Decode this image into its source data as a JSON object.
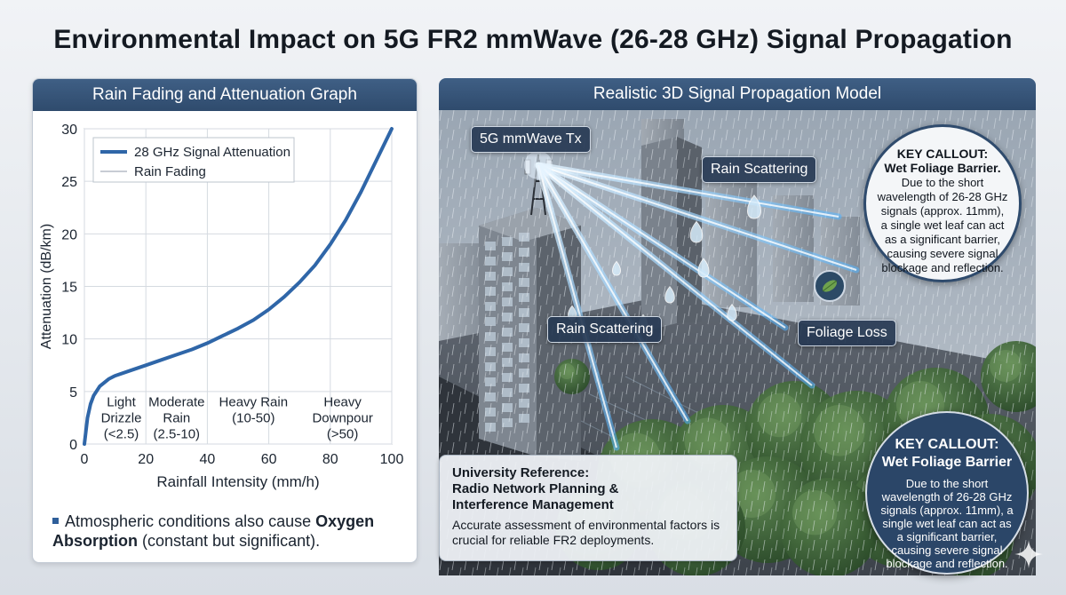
{
  "title": "Environmental Impact on 5G FR2 mmWave (26-28 GHz) Signal Propagation",
  "left_panel": {
    "header": "Rain Fading and Attenuation Graph",
    "footnote_prefix": "Atmospheric conditions also cause ",
    "footnote_bold": "Oxygen Absorption",
    "footnote_suffix": " (constant but significant)."
  },
  "chart_data": {
    "type": "line",
    "xlabel": "Rainfall Intensity (mm/h)",
    "ylabel": "Attenuation (dB/km)",
    "xlim": [
      0,
      100
    ],
    "ylim": [
      0,
      30
    ],
    "x_ticks": [
      0,
      20,
      40,
      60,
      80,
      100
    ],
    "y_ticks": [
      0,
      5,
      10,
      15,
      20,
      25,
      30
    ],
    "grid": true,
    "legend_position": "top-left",
    "series": [
      {
        "name": "28 GHz Signal Attenuation",
        "color": "#2f66a8",
        "x": [
          0,
          1,
          2,
          3,
          5,
          8,
          10,
          15,
          20,
          25,
          30,
          35,
          40,
          45,
          50,
          55,
          60,
          65,
          70,
          75,
          80,
          85,
          90,
          95,
          100
        ],
        "y": [
          0,
          2.5,
          3.8,
          4.6,
          5.5,
          6.2,
          6.5,
          7.0,
          7.5,
          8.0,
          8.5,
          9.0,
          9.6,
          10.3,
          11.0,
          11.8,
          12.8,
          14.0,
          15.4,
          17.0,
          19.0,
          21.3,
          24.0,
          27.0,
          30.0
        ]
      },
      {
        "name": "Rain Fading",
        "color": "#b5bcc6",
        "x": [],
        "y": []
      }
    ],
    "annotations": [
      {
        "text": [
          "Light",
          "Drizzle",
          "(<2.5)"
        ],
        "x": 12,
        "y": 3.6
      },
      {
        "text": [
          "Moderate",
          "Rain",
          "(2.5-10)"
        ],
        "x": 30,
        "y": 3.6
      },
      {
        "text": [
          "Heavy Rain",
          "(10-50)"
        ],
        "x": 55,
        "y": 3.6
      },
      {
        "text": [
          "Heavy",
          "Downpour",
          "(>50)"
        ],
        "x": 84,
        "y": 3.6
      }
    ]
  },
  "right_panel": {
    "header": "Realistic 3D Signal Propagation Model",
    "labels": {
      "tx": "5G mmWave Tx",
      "rain_scattering_top": "Rain Scattering",
      "rain_scattering_left": "Rain Scattering",
      "foliage_loss": "Foliage Loss"
    },
    "callout_top": {
      "title_line1": "KEY CALLOUT:",
      "title_line2": "Wet Foliage Barrier.",
      "body": "Due to the short wavelength of 26-28 GHz signals (approx. 11mm), a single wet leaf can act as a significant barrier, causing severe signal blockage and reflection."
    },
    "callout_bottom": {
      "title_line1": "KEY CALLOUT:",
      "title_line2": "Wet Foliage Barrier",
      "body": "Due to the short wavelength of 26-28 GHz signals (approx. 11mm), a single wet leaf can act as a significant barrier, causing severe signal blockage and reflection."
    },
    "reference": {
      "title_line1": "University Reference:",
      "title_line2": "Radio Network Planning &",
      "title_line3": "Interference Management",
      "body": "Accurate assessment of environmental factors is crucial for reliable FR2 deployments."
    }
  }
}
